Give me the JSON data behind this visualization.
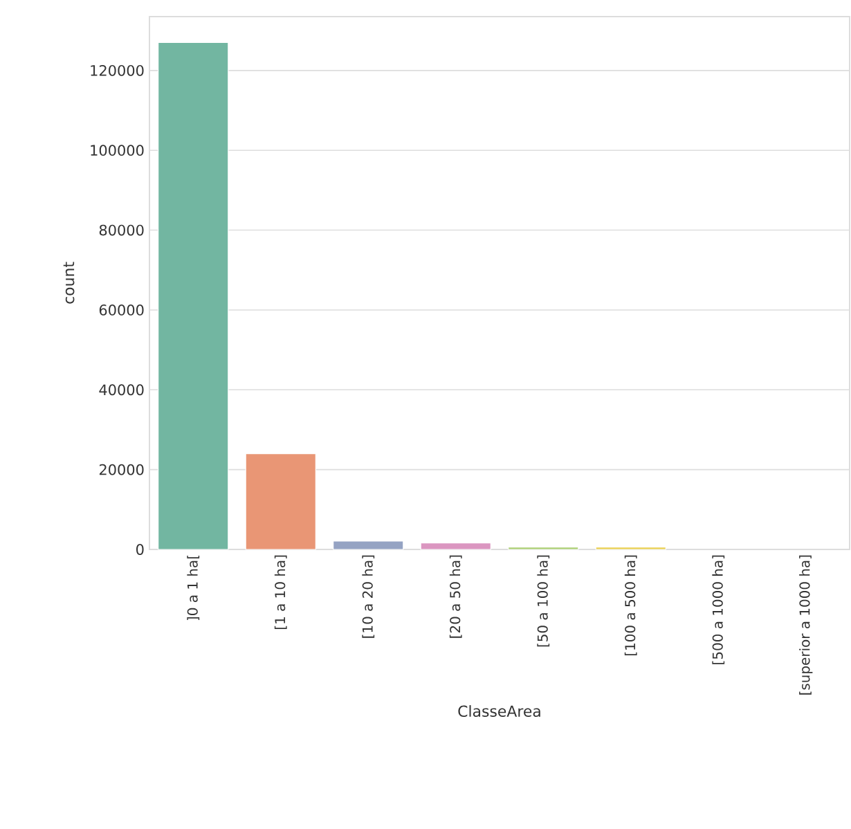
{
  "chart_data": {
    "type": "bar",
    "xlabel": "ClasseArea",
    "ylabel": "count",
    "categories": [
      "]0 a 1 ha[",
      "[1 a 10 ha]",
      "[10 a 20 ha]",
      "[20 a 50 ha]",
      "[50 a 100 ha]",
      "[100 a 500 ha]",
      "[500 a 1000 ha]",
      "[superior a 1000 ha]"
    ],
    "values": [
      127000,
      24000,
      2100,
      1600,
      600,
      600,
      null,
      null
    ],
    "colors": [
      "#72b6a1",
      "#e99675",
      "#95a3c3",
      "#db96c0",
      "#a9cd70",
      "#e8ce4d",
      "#d7c3a0",
      "#b3b3b3"
    ],
    "ylim": [
      0,
      133500
    ],
    "yticks": [
      0,
      20000,
      40000,
      60000,
      80000,
      100000,
      120000
    ],
    "grid": "y"
  }
}
